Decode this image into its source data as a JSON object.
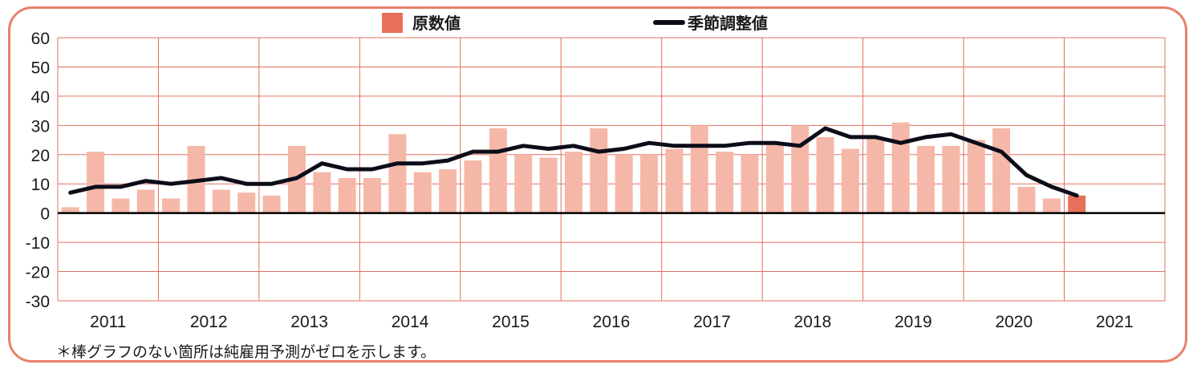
{
  "legend": {
    "bar_label": "原数値",
    "line_label": "季節調整値"
  },
  "note": "＊棒グラフのない箇所は純雇用予測がゼロを示します。",
  "colors": {
    "bar": "#f5b8a8",
    "bar_highlight": "#e8705a",
    "line": "#0d0d1a",
    "grid": "#e07060",
    "frame": "#e8806c"
  },
  "chart_data": {
    "type": "bar",
    "x_ticks": [
      "2011",
      "2012",
      "2013",
      "2014",
      "2015",
      "2016",
      "2017",
      "2018",
      "2019",
      "2020",
      "2021"
    ],
    "y_ticks": [
      60,
      50,
      40,
      30,
      20,
      10,
      0,
      -10,
      -20,
      -30
    ],
    "ylim": [
      -30,
      60
    ],
    "grid": true,
    "legend_position": "top-center",
    "series": [
      {
        "name": "原数値",
        "type": "bar",
        "values": [
          2,
          21,
          5,
          8,
          5,
          23,
          8,
          7,
          6,
          23,
          14,
          12,
          12,
          27,
          14,
          15,
          18,
          29,
          20,
          19,
          21,
          29,
          20,
          20,
          22,
          30,
          21,
          20,
          24,
          30,
          26,
          22,
          26,
          31,
          23,
          23,
          25,
          29,
          9,
          5,
          6
        ]
      },
      {
        "name": "季節調整値",
        "type": "line",
        "values": [
          7,
          9,
          9,
          11,
          10,
          11,
          12,
          10,
          10,
          12,
          17,
          15,
          15,
          17,
          17,
          18,
          21,
          21,
          23,
          22,
          23,
          21,
          22,
          24,
          23,
          23,
          23,
          24,
          24,
          23,
          29,
          26,
          26,
          24,
          26,
          27,
          24,
          21,
          13,
          9,
          6
        ]
      }
    ]
  }
}
